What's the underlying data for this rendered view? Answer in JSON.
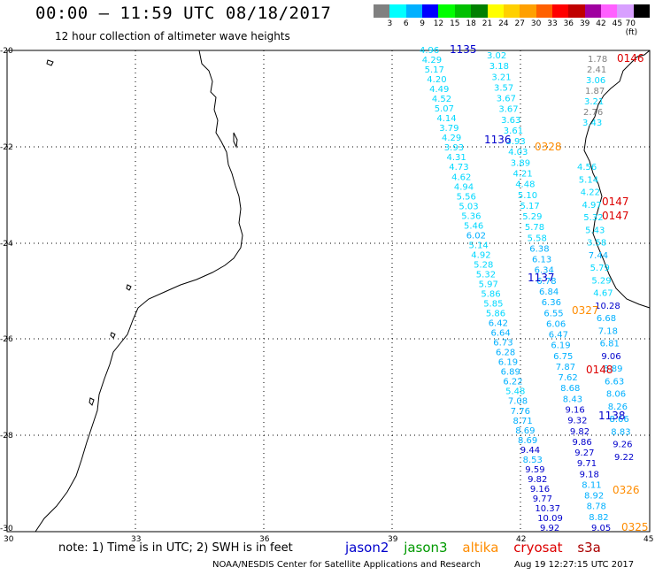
{
  "title": "00:00 – 11:59 UTC 08/18/2017",
  "subtitle": "12 hour collection of altimeter wave heights",
  "scale": {
    "labels": [
      "3",
      "6",
      "9",
      "12",
      "15",
      "18",
      "21",
      "24",
      "27",
      "30",
      "33",
      "36",
      "39",
      "42",
      "45",
      "70 (ft)"
    ],
    "colors": [
      "#808080",
      "#00ffff",
      "#00b0ff",
      "#0000ff",
      "#00ff00",
      "#00c000",
      "#008000",
      "#ffff00",
      "#ffd000",
      "#ffa000",
      "#ff6000",
      "#ff0000",
      "#c00000",
      "#a000a0",
      "#ff60ff",
      "#d8a0ff",
      "#000000"
    ]
  },
  "axes": {
    "lon_ticks": [
      "30",
      "33",
      "36",
      "39",
      "42",
      "45"
    ],
    "lat_ticks": [
      "-20",
      "-22",
      "-24",
      "-26",
      "-28",
      "-30"
    ]
  },
  "passes": [
    {
      "id": "1135",
      "color": "#0000cc"
    },
    {
      "id": "1136",
      "color": "#0000cc"
    },
    {
      "id": "0328",
      "color": "#ff8c00"
    },
    {
      "id": "0146",
      "color": "#dd0000"
    },
    {
      "id": "0147",
      "color": "#dd0000"
    },
    {
      "id": "0147b",
      "label": "0147",
      "color": "#dd0000"
    },
    {
      "id": "1137",
      "color": "#0000cc"
    },
    {
      "id": "0327",
      "color": "#ff8c00"
    },
    {
      "id": "0148",
      "color": "#dd0000"
    },
    {
      "id": "1138",
      "color": "#0000cc"
    },
    {
      "id": "0326",
      "color": "#ff8c00"
    },
    {
      "id": "0325",
      "color": "#ff8c00"
    }
  ],
  "tracks": {
    "track_a": [
      "4.96",
      "4.29",
      "5.17",
      "4.20",
      "4.49",
      "4.52",
      "5.07",
      "4.14",
      "3.79",
      "4.29",
      "3.93",
      "4.31",
      "4.73",
      "4.62",
      "4.94",
      "5.56",
      "5.03",
      "5.36",
      "5.46",
      "6.02",
      "5.14",
      "4.92",
      "5.28",
      "5.32",
      "5.97",
      "5.86",
      "5.85",
      "5.86",
      "6.42",
      "6.64",
      "6.73",
      "6.28",
      "6.19",
      "6.89",
      "6.22",
      "5.48",
      "7.08",
      "7.76",
      "8.71",
      "8.69",
      "8.69",
      "9.44",
      "8.53",
      "9.59",
      "9.82",
      "9.16",
      "9.77",
      "10.37",
      "10.09",
      "9.92"
    ],
    "track_b": [
      "3.02",
      "3.18",
      "3.21",
      "3.57",
      "3.67",
      "3.67",
      "3.63",
      "3.61",
      "3.93",
      "4.03",
      "3.89",
      "4.21",
      "4.48",
      "5.10",
      "5.17",
      "5.29",
      "5.78",
      "5.58",
      "6.38",
      "6.13",
      "6.34",
      "6.78",
      "6.84",
      "6.36",
      "6.55",
      "6.06",
      "6.47",
      "6.19",
      "6.75",
      "7.87",
      "7.62",
      "8.68",
      "8.43",
      "9.16",
      "9.32",
      "9.82",
      "9.86",
      "9.27",
      "9.71",
      "9.18",
      "8.11",
      "8.92",
      "8.78",
      "8.82",
      "9.05"
    ],
    "track_c": [
      "1.78",
      "2.41",
      "3.06",
      "1.87",
      "3.21",
      "2.76",
      "3.43"
    ],
    "track_d": [
      "4.56",
      "5.14",
      "4.22",
      "4.97",
      "5.32",
      "5.43",
      "3.58",
      "7.44",
      "5.79",
      "5.29",
      "4.67",
      "10.28",
      "6.68",
      "7.18",
      "6.81",
      "9.06",
      "6.89",
      "6.63",
      "8.06",
      "8.26",
      "8.66",
      "8.83",
      "9.26",
      "9.22"
    ]
  },
  "note": {
    "text": "note:  1) Time is in UTC;  2) SWH is in feet"
  },
  "legend": [
    {
      "name": "jason2",
      "color": "#0000cc"
    },
    {
      "name": "jason3",
      "color": "#009900"
    },
    {
      "name": "altika",
      "color": "#ff8c00"
    },
    {
      "name": "cryosat",
      "color": "#dd0000"
    },
    {
      "name": "s3a",
      "color": "#aa0000"
    }
  ],
  "credit": "NOAA/NESDIS Center for Satellite Applications and Research",
  "timestamp": "Aug 19 12:27:15 UTC 2017"
}
